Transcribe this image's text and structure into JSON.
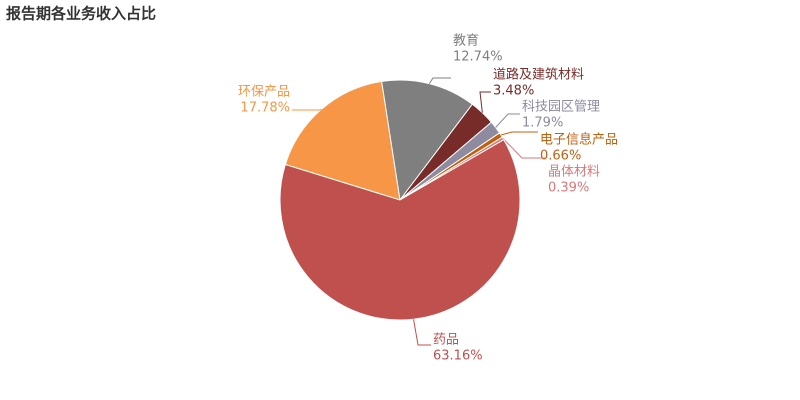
{
  "chart_data": {
    "type": "pie",
    "title": "报告期各业务收入占比",
    "categories": [
      "环保产品",
      "教育",
      "道路及建筑材料",
      "科技园区管理",
      "电子信息产品",
      "晶体材料",
      "药品"
    ],
    "values": [
      17.78,
      12.74,
      3.48,
      1.79,
      0.66,
      0.39,
      63.16
    ],
    "value_labels": [
      "17.78%",
      "12.74%",
      "3.48%",
      "1.79%",
      "0.66%",
      "0.39%",
      "63.16%"
    ],
    "colors": [
      "#f79646",
      "#7f7f7f",
      "#772c2a",
      "#8e8aa0",
      "#c0600f",
      "#d9797a",
      "#c0504d"
    ]
  }
}
